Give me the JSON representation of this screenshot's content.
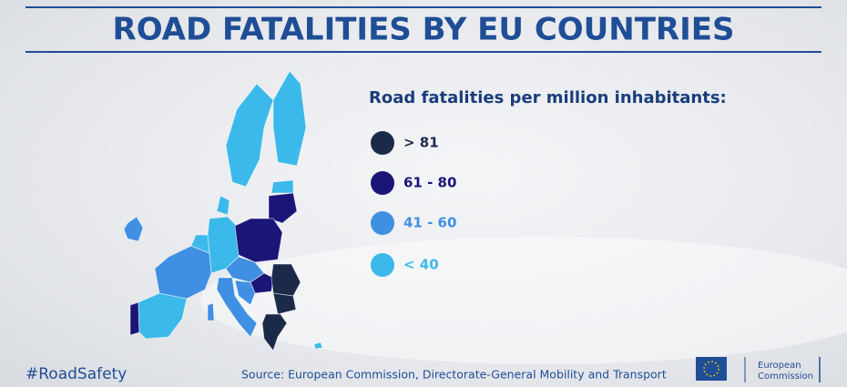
{
  "header": {
    "title": "ROAD FATALITIES BY EU COUNTRIES"
  },
  "legend": {
    "title": "Road fatalities per million inhabitants:",
    "items": [
      {
        "label": "> 81",
        "color": "#1c2a4a"
      },
      {
        "label": "61 - 80",
        "color": "#1b1577"
      },
      {
        "label": "41 - 60",
        "color": "#3f8fe2"
      },
      {
        "label": "< 40",
        "color": "#3bb9ea"
      }
    ]
  },
  "footer": {
    "hashtag": "#RoadSafety",
    "source": "Source: European Commission, Directorate-General Mobility and Transport",
    "logo": [
      "European",
      "Commission"
    ]
  }
}
